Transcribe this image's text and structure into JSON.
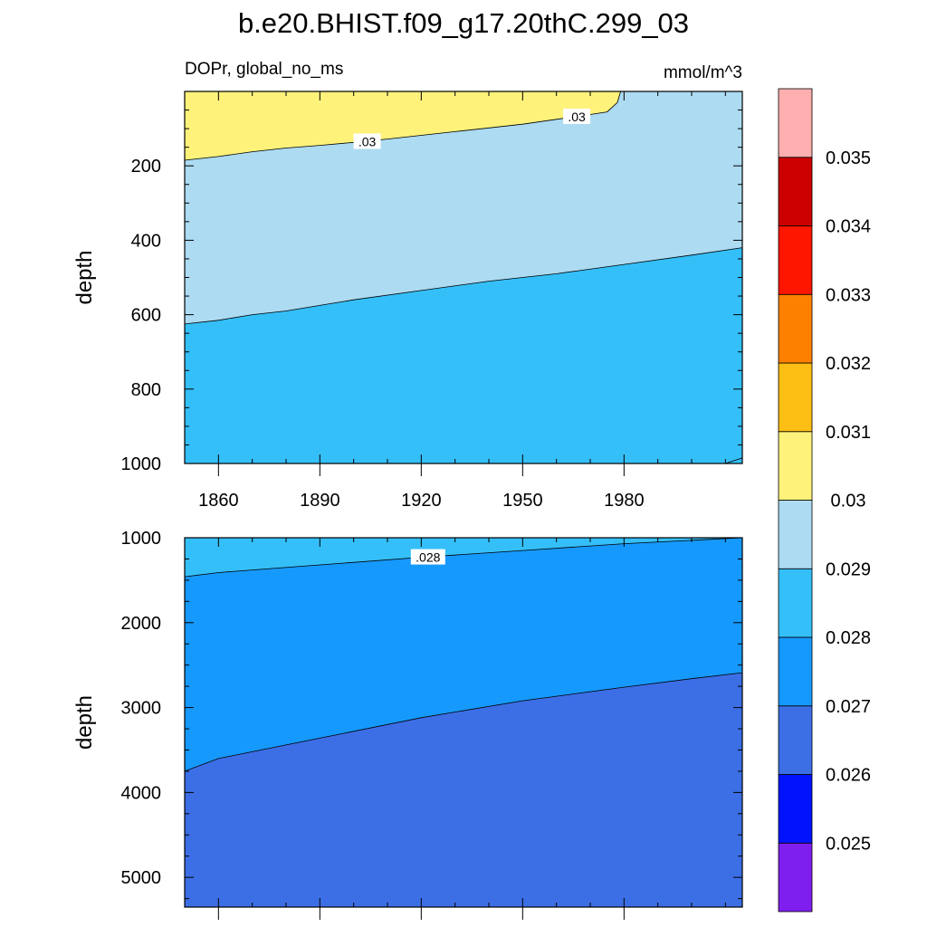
{
  "title": "b.e20.BHIST.f09_g17.20thC.299_03",
  "chart_data": {
    "type": "contour",
    "variable_label": "DOPr, global_no_ms",
    "units_label": "mmol/m^3",
    "xaxis": {
      "range": [
        1850,
        2015
      ],
      "tick_values": [
        1860,
        1890,
        1920,
        1950,
        1980
      ],
      "tick_labels": [
        "1860",
        "1890",
        "1920",
        "1950",
        "1980"
      ]
    },
    "colorbar": {
      "colors": [
        "#7f1fef",
        "#0013fc",
        "#3c6fe6",
        "#1699fd",
        "#35bff8",
        "#acdbf2",
        "#fef27b",
        "#fdbf13",
        "#fe8000",
        "#fe1600",
        "#cc0000",
        "#ffafaf"
      ],
      "level_values": [
        0.025,
        0.026,
        0.027,
        0.028,
        0.029,
        0.03,
        0.031,
        0.032,
        0.033,
        0.034,
        0.035
      ],
      "level_labels": [
        "0.025",
        "0.026",
        "0.027",
        "0.028",
        "0.029",
        "0.03",
        "0.031",
        "0.032",
        "0.033",
        "0.034",
        "0.035"
      ]
    },
    "panels": [
      {
        "name": "upper",
        "ylabel": "depth",
        "yrange": [
          0,
          1000
        ],
        "y_reversed": true,
        "ytick_values": [
          200,
          400,
          600,
          800,
          1000
        ],
        "ytick_labels": [
          "200",
          "400",
          "600",
          "800",
          "1000"
        ],
        "background_color": "#35bff8",
        "regions": [
          {
            "band": "0.029-0.03",
            "color": "#acdbf2",
            "years": [
              1850,
              2015,
              2015,
              2000,
              1980,
              1960,
              1940,
              1920,
              1900,
              1880,
              1870,
              1860,
              1850
            ],
            "depths": [
              0,
              0,
              420,
              440,
              465,
              490,
              510,
              535,
              560,
              590,
              600,
              615,
              625
            ]
          },
          {
            "band": "0.03-0.031",
            "color": "#fef27b",
            "years": [
              1850,
              1979,
              1978,
              1975,
              1970,
              1960,
              1950,
              1940,
              1930,
              1920,
              1910,
              1900,
              1890,
              1880,
              1870,
              1860,
              1850
            ],
            "depths": [
              0,
              0,
              30,
              55,
              62,
              75,
              88,
              98,
              108,
              118,
              128,
              137,
              145,
              152,
              162,
              175,
              185
            ]
          },
          {
            "band": "0.028-0.029",
            "color": "#35bff8",
            "years": [
              2015,
              2015,
              2010
            ],
            "depths": [
              985,
              1000,
              1000
            ]
          }
        ],
        "contour_labels": [
          {
            "text": ".03",
            "year": 1904,
            "depth": 135
          },
          {
            "text": ".03",
            "year": 1966,
            "depth": 68
          }
        ]
      },
      {
        "name": "lower",
        "ylabel": "depth",
        "yrange": [
          1000,
          5350
        ],
        "y_reversed": true,
        "ytick_values": [
          1000,
          2000,
          3000,
          4000,
          5000
        ],
        "ytick_labels": [
          "1000",
          "2000",
          "3000",
          "4000",
          "5000"
        ],
        "background_color": "#1699fd",
        "regions": [
          {
            "band": "0.028-0.029",
            "color": "#35bff8",
            "years": [
              1850,
              2015,
              2015,
              2000,
              1980,
              1950,
              1920,
              1890,
              1860,
              1850
            ],
            "depths": [
              1000,
              1000,
              1000,
              1030,
              1070,
              1150,
              1230,
              1320,
              1410,
              1460
            ]
          },
          {
            "band": "0.026-0.027",
            "color": "#3c6fe6",
            "years": [
              1850,
              1860,
              1870,
              1890,
              1920,
              1950,
              1980,
              2000,
              2015,
              2015,
              1850
            ],
            "depths": [
              3750,
              3600,
              3520,
              3360,
              3120,
              2920,
              2760,
              2660,
              2590,
              5350,
              5350
            ]
          }
        ],
        "contour_labels": [
          {
            "text": ".028",
            "year": 1922,
            "depth": 1230
          }
        ]
      }
    ]
  }
}
